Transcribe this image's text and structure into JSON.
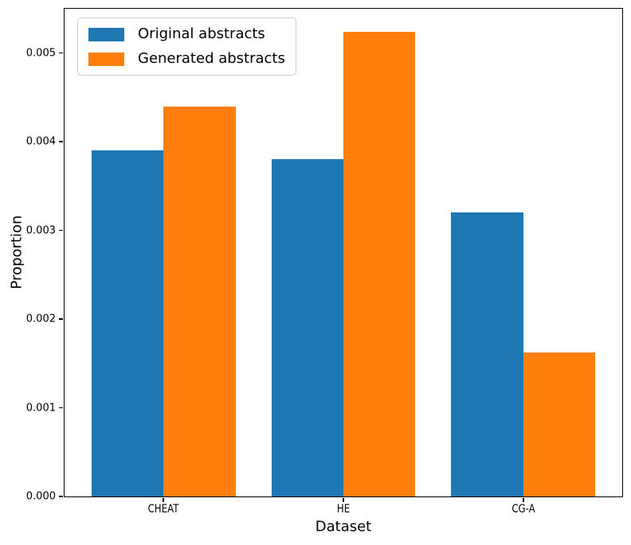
{
  "figure": {
    "background": "#ffffff",
    "text_color": "#000000"
  },
  "chart_data": {
    "type": "bar",
    "title": "",
    "xlabel": "Dataset",
    "ylabel": "Proportion",
    "categories": [
      "CHEAT",
      "HE",
      "CG-A"
    ],
    "series": [
      {
        "name": "Original abstracts",
        "color": "#1f77b4",
        "values": [
          0.0039,
          0.0038,
          0.0032
        ]
      },
      {
        "name": "Generated abstracts",
        "color": "#ff7f0e",
        "values": [
          0.0044,
          0.00524,
          0.00162
        ]
      }
    ],
    "ylim": [
      0,
      0.0055
    ],
    "yticks": [
      0,
      0.001,
      0.002,
      0.003,
      0.004,
      0.005
    ],
    "ytick_decimals": 3,
    "xlim": [
      -0.55,
      2.55
    ],
    "bar_width": 0.4,
    "grid": false,
    "legend_position": "upper left",
    "axis_color": "#000000"
  }
}
